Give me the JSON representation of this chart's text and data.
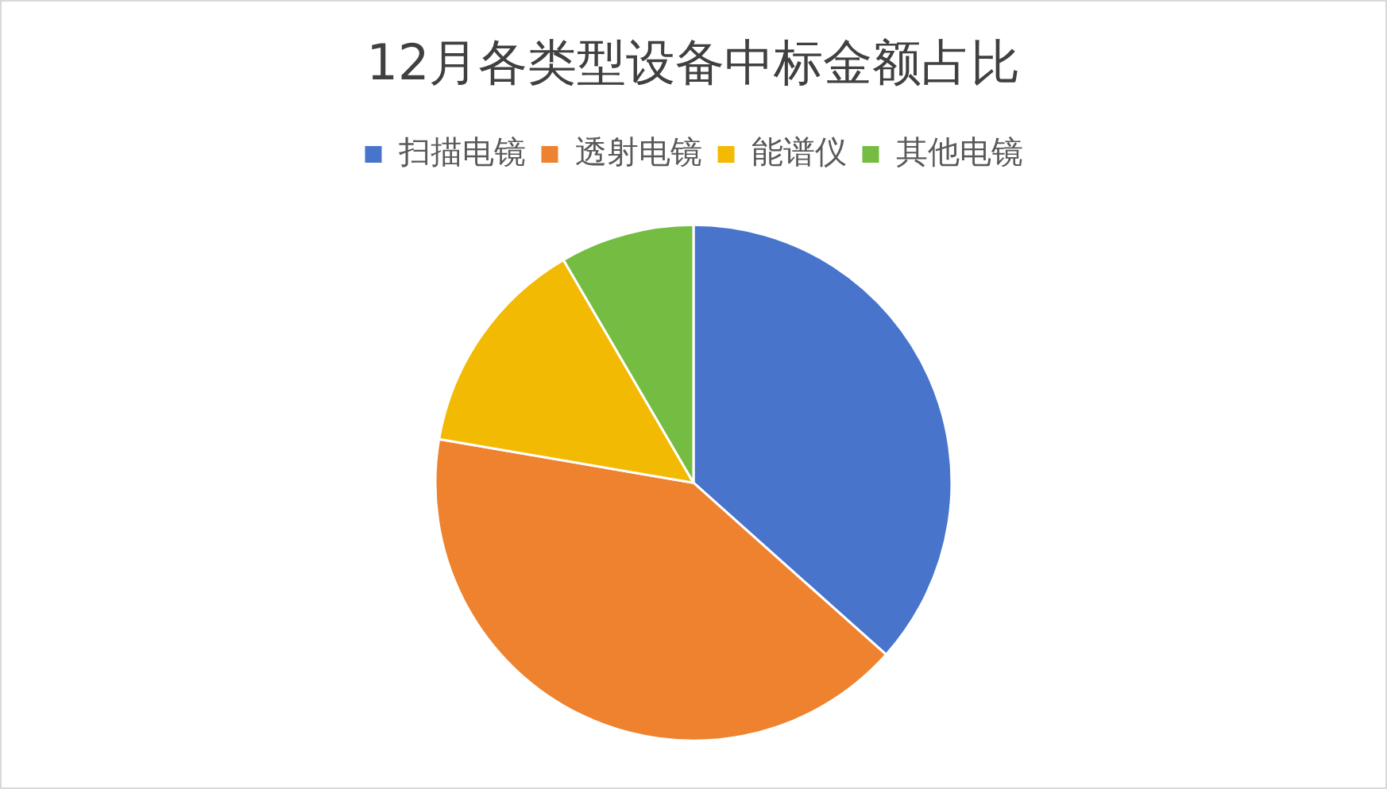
{
  "chart_data": {
    "type": "pie",
    "title": "12月各类型设备中标金额占比",
    "categories": [
      "扫描电镜",
      "透射电镜",
      "能谱仪",
      "其他电镜"
    ],
    "values": [
      36.6,
      41.1,
      13.9,
      8.4
    ],
    "colors": [
      "#4874cb",
      "#ee822f",
      "#f2ba02",
      "#75bd42"
    ],
    "legend": "top"
  }
}
